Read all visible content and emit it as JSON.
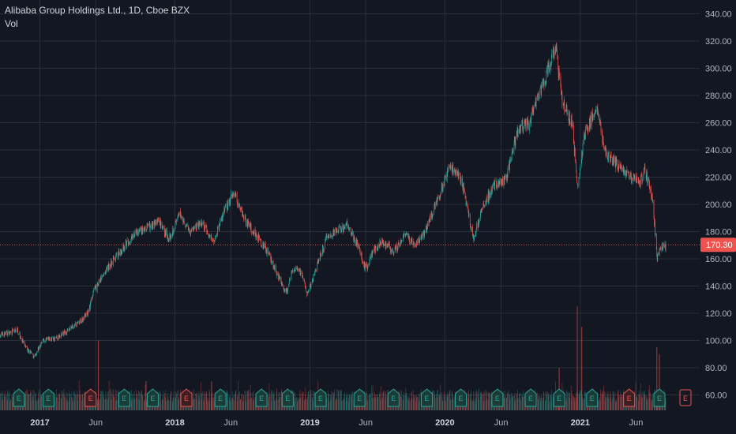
{
  "header": {
    "symbol_title": "Alibaba Group Holdings Ltd., 1D, Cboe BZX",
    "volume_label": "Vol"
  },
  "colors": {
    "background": "#131722",
    "grid": "#2a2e39",
    "up": "#26a69a",
    "down": "#ef5350",
    "text": "#d1d4dc",
    "axis_text": "#b2b5be",
    "price_badge": "#ef5350"
  },
  "chart_data": {
    "type": "candlestick",
    "title": "Alibaba Group Holdings Ltd., 1D, Cboe BZX",
    "y_ticks": [
      60,
      80,
      100,
      120,
      140,
      160,
      180,
      200,
      220,
      240,
      260,
      280,
      300,
      320,
      340
    ],
    "ylim": [
      50,
      345
    ],
    "x_range": [
      "2016-09-15",
      "2021-08-20"
    ],
    "x_ticks": [
      {
        "date": "2017-01-01",
        "label": "2017",
        "bold": true
      },
      {
        "date": "2017-06-01",
        "label": "Jun",
        "bold": false
      },
      {
        "date": "2018-01-01",
        "label": "2018",
        "bold": true
      },
      {
        "date": "2018-06-01",
        "label": "Jun",
        "bold": false
      },
      {
        "date": "2019-01-01",
        "label": "2019",
        "bold": true
      },
      {
        "date": "2019-06-01",
        "label": "Jun",
        "bold": false
      },
      {
        "date": "2020-01-01",
        "label": "2020",
        "bold": true
      },
      {
        "date": "2020-06-01",
        "label": "Jun",
        "bold": false
      },
      {
        "date": "2021-01-01",
        "label": "2021",
        "bold": true
      },
      {
        "date": "2021-06-01",
        "label": "Jun",
        "bold": false
      }
    ],
    "last_price": {
      "value": 170.3,
      "label": "170.30"
    },
    "close_path": [
      [
        "2016-09-15",
        104
      ],
      [
        "2016-10-15",
        106
      ],
      [
        "2016-11-01",
        108
      ],
      [
        "2016-11-20",
        96
      ],
      [
        "2016-12-15",
        88
      ],
      [
        "2017-01-10",
        100
      ],
      [
        "2017-02-15",
        102
      ],
      [
        "2017-03-15",
        107
      ],
      [
        "2017-04-15",
        113
      ],
      [
        "2017-05-10",
        120
      ],
      [
        "2017-05-25",
        135
      ],
      [
        "2017-06-15",
        145
      ],
      [
        "2017-07-15",
        158
      ],
      [
        "2017-08-15",
        168
      ],
      [
        "2017-09-15",
        178
      ],
      [
        "2017-10-15",
        182
      ],
      [
        "2017-11-15",
        188
      ],
      [
        "2017-12-15",
        175
      ],
      [
        "2018-01-15",
        193
      ],
      [
        "2018-02-10",
        180
      ],
      [
        "2018-03-15",
        186
      ],
      [
        "2018-04-15",
        172
      ],
      [
        "2018-05-15",
        195
      ],
      [
        "2018-06-10",
        210
      ],
      [
        "2018-06-20",
        202
      ],
      [
        "2018-07-15",
        186
      ],
      [
        "2018-08-15",
        175
      ],
      [
        "2018-09-15",
        162
      ],
      [
        "2018-10-10",
        145
      ],
      [
        "2018-10-30",
        135
      ],
      [
        "2018-11-15",
        152
      ],
      [
        "2018-12-10",
        150
      ],
      [
        "2018-12-24",
        132
      ],
      [
        "2019-01-20",
        155
      ],
      [
        "2019-02-15",
        175
      ],
      [
        "2019-03-15",
        180
      ],
      [
        "2019-04-15",
        185
      ],
      [
        "2019-05-10",
        170
      ],
      [
        "2019-06-01",
        152
      ],
      [
        "2019-06-20",
        165
      ],
      [
        "2019-07-15",
        173
      ],
      [
        "2019-08-15",
        165
      ],
      [
        "2019-09-15",
        178
      ],
      [
        "2019-10-15",
        170
      ],
      [
        "2019-11-15",
        185
      ],
      [
        "2019-12-15",
        205
      ],
      [
        "2020-01-15",
        228
      ],
      [
        "2020-02-15",
        218
      ],
      [
        "2020-03-18",
        175
      ],
      [
        "2020-04-15",
        200
      ],
      [
        "2020-05-15",
        215
      ],
      [
        "2020-06-15",
        218
      ],
      [
        "2020-07-15",
        255
      ],
      [
        "2020-08-15",
        260
      ],
      [
        "2020-09-10",
        280
      ],
      [
        "2020-10-01",
        295
      ],
      [
        "2020-10-27",
        317
      ],
      [
        "2020-11-10",
        280
      ],
      [
        "2020-11-25",
        268
      ],
      [
        "2020-12-10",
        260
      ],
      [
        "2020-12-24",
        214
      ],
      [
        "2021-01-15",
        255
      ],
      [
        "2021-02-16",
        270
      ],
      [
        "2021-03-10",
        238
      ],
      [
        "2021-04-15",
        228
      ],
      [
        "2021-05-15",
        220
      ],
      [
        "2021-06-10",
        215
      ],
      [
        "2021-06-25",
        225
      ],
      [
        "2021-07-15",
        205
      ],
      [
        "2021-07-28",
        160
      ],
      [
        "2021-08-05",
        168
      ],
      [
        "2021-08-20",
        170
      ]
    ],
    "volume_spikes": [
      {
        "date": "2017-06-08",
        "value": 100
      },
      {
        "date": "2017-10-15",
        "value": 70
      },
      {
        "date": "2018-04-10",
        "value": 70
      },
      {
        "date": "2020-11-05",
        "value": 80
      },
      {
        "date": "2020-12-24",
        "value": 125
      },
      {
        "date": "2021-01-05",
        "value": 110
      },
      {
        "date": "2021-07-27",
        "value": 95
      },
      {
        "date": "2021-08-03",
        "value": 90
      }
    ],
    "earnings_markers": [
      {
        "date": "2016-11-05",
        "type": "up",
        "label": "E"
      },
      {
        "date": "2017-01-24",
        "type": "up",
        "label": "E"
      },
      {
        "date": "2017-05-18",
        "type": "down",
        "label": "E"
      },
      {
        "date": "2017-08-17",
        "type": "up",
        "label": "E"
      },
      {
        "date": "2017-11-02",
        "type": "up",
        "label": "E"
      },
      {
        "date": "2018-02-01",
        "type": "down",
        "label": "E"
      },
      {
        "date": "2018-05-04",
        "type": "up",
        "label": "E"
      },
      {
        "date": "2018-08-23",
        "type": "up",
        "label": "E"
      },
      {
        "date": "2018-11-02",
        "type": "up",
        "label": "E"
      },
      {
        "date": "2019-01-30",
        "type": "up",
        "label": "E"
      },
      {
        "date": "2019-05-15",
        "type": "up",
        "label": "E"
      },
      {
        "date": "2019-08-15",
        "type": "up",
        "label": "E"
      },
      {
        "date": "2019-11-13",
        "type": "up",
        "label": "E"
      },
      {
        "date": "2020-02-13",
        "type": "up",
        "label": "E"
      },
      {
        "date": "2020-05-22",
        "type": "up",
        "label": "E"
      },
      {
        "date": "2020-08-20",
        "type": "up",
        "label": "E"
      },
      {
        "date": "2020-11-05",
        "type": "up",
        "label": "E"
      },
      {
        "date": "2021-02-02",
        "type": "up",
        "label": "E"
      },
      {
        "date": "2021-05-13",
        "type": "down",
        "label": "E"
      },
      {
        "date": "2021-08-03",
        "type": "up",
        "label": "E"
      },
      {
        "date": "2021-11-18",
        "type": "future",
        "label": "E"
      }
    ]
  }
}
